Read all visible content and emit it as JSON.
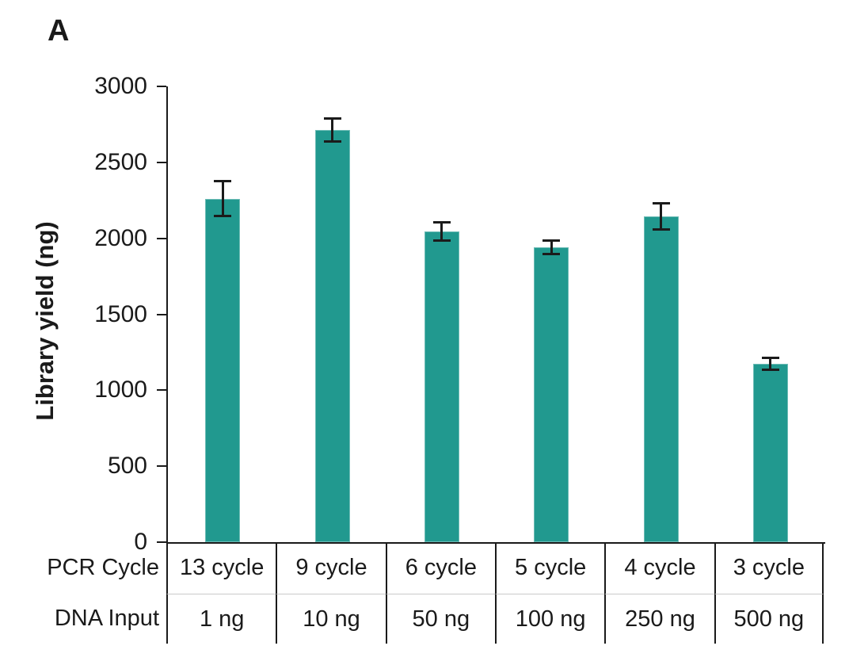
{
  "panel_label": "A",
  "colors": {
    "bar": "#21998F",
    "axis": "#1a1a1a",
    "error_bar": "#1b1b1b",
    "row_divider": "#c9c9c9"
  },
  "chart_data": {
    "type": "bar",
    "title": "",
    "xlabel": "",
    "ylabel": "Library yield (ng)",
    "ylim": [
      0,
      3000
    ],
    "yticks": [
      0,
      500,
      1000,
      1500,
      2000,
      2500,
      3000
    ],
    "grid": false,
    "legend": "none",
    "categories": [
      "13 cycle",
      "9 cycle",
      "6 cycle",
      "5 cycle",
      "4 cycle",
      "3 cycle"
    ],
    "series": [
      {
        "name": "Library yield (ng)",
        "values": [
          2260,
          2715,
          2045,
          1940,
          2145,
          1175
        ],
        "errors": [
          115,
          75,
          60,
          45,
          85,
          40
        ]
      }
    ],
    "x_table": {
      "rows": [
        {
          "label": "PCR Cycle",
          "cells": [
            "13 cycle",
            "9 cycle",
            "6 cycle",
            "5 cycle",
            "4 cycle",
            "3 cycle"
          ]
        },
        {
          "label": "DNA Input",
          "cells": [
            "1 ng",
            "10 ng",
            "50 ng",
            "100 ng",
            "250 ng",
            "500 ng"
          ]
        }
      ]
    }
  }
}
